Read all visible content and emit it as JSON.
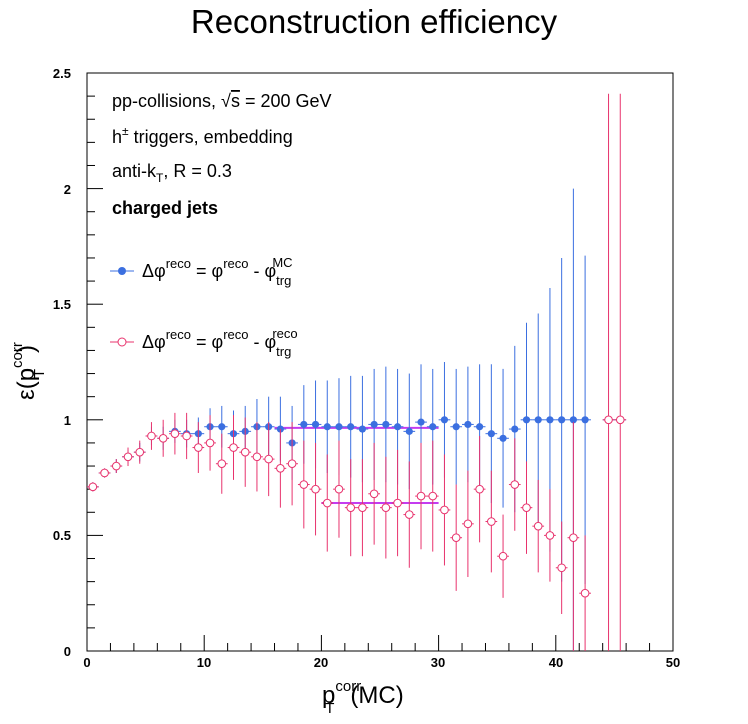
{
  "chart_data": {
    "type": "scatter",
    "title": "Reconstruction efficiency",
    "xlabel": {
      "main": "p",
      "sub": "T",
      "sup": "corr",
      "suffix": "(MC)"
    },
    "ylabel": {
      "main": "ε(p",
      "sub": "T",
      "sup": "corr",
      "suffix": ")"
    },
    "xlim": [
      0,
      50
    ],
    "ylim": [
      0,
      2.5
    ],
    "x_ticks": [
      "0",
      "10",
      "20",
      "30",
      "40",
      "50"
    ],
    "y_ticks": [
      "0",
      "0.5",
      "1",
      "1.5",
      "2",
      "2.5"
    ],
    "annotations": {
      "collision_pre": "pp-collisions, ",
      "collision_sqrt": "√",
      "collision_s": "s",
      "collision_post": " = 200 GeV",
      "trigger_h": "h",
      "trigger_sup": "±",
      "trigger_post": " triggers, embedding",
      "algo_pre": "anti-k",
      "algo_sub": "T",
      "algo_post": ", R = 0.3",
      "jets": "charged jets"
    },
    "legend_placement": "upper-left",
    "series": [
      {
        "legend": {
          "main": "Δφ",
          "sup1": "reco",
          "mid": " = φ",
          "sup2": "reco",
          "minus": " - φ",
          "sub3": "trg",
          "sup3": "MC"
        },
        "color": "#3b6fe0",
        "marker": "filled-circle",
        "x": [
          0.5,
          1.5,
          2.5,
          3.5,
          4.5,
          5.5,
          6.5,
          7.5,
          8.5,
          9.5,
          10.5,
          11.5,
          12.5,
          13.5,
          14.5,
          15.5,
          16.5,
          17.5,
          18.5,
          19.5,
          20.5,
          21.5,
          22.5,
          23.5,
          24.5,
          25.5,
          26.5,
          27.5,
          28.5,
          29.5,
          30.5,
          31.5,
          32.5,
          33.5,
          34.5,
          35.5,
          36.5,
          37.5,
          38.5,
          39.5,
          40.5,
          41.5,
          42.5,
          44.5,
          45.5
        ],
        "y": [
          0.71,
          0.77,
          0.8,
          0.84,
          0.86,
          0.93,
          0.92,
          0.95,
          0.94,
          0.94,
          0.97,
          0.97,
          0.94,
          0.95,
          0.97,
          0.97,
          0.96,
          0.9,
          0.98,
          0.98,
          0.97,
          0.97,
          0.97,
          0.96,
          0.98,
          0.98,
          0.97,
          0.95,
          0.99,
          0.97,
          1.0,
          0.97,
          0.98,
          0.97,
          0.94,
          0.92,
          0.96,
          1.0,
          1.0,
          1.0,
          1.0,
          1.0,
          1.0,
          1.0,
          1.0
        ],
        "err": [
          0.02,
          0.02,
          0.03,
          0.03,
          0.04,
          0.04,
          0.05,
          0.05,
          0.06,
          0.07,
          0.08,
          0.09,
          0.1,
          0.11,
          0.12,
          0.13,
          0.14,
          0.16,
          0.17,
          0.19,
          0.2,
          0.21,
          0.22,
          0.23,
          0.24,
          0.25,
          0.25,
          0.25,
          0.25,
          0.25,
          0.25,
          0.25,
          0.25,
          0.27,
          0.3,
          0.3,
          0.36,
          0.42,
          0.46,
          0.57,
          0.7,
          1.0,
          0.71,
          0.0,
          0.0
        ]
      },
      {
        "legend": {
          "main": "Δφ",
          "sup1": "reco",
          "mid": " = φ",
          "sup2": "reco",
          "minus": " - φ",
          "sub3": "trg",
          "sup3": "reco"
        },
        "color": "#e8336d",
        "marker": "open-circle",
        "x": [
          0.5,
          1.5,
          2.5,
          3.5,
          4.5,
          5.5,
          6.5,
          7.5,
          8.5,
          9.5,
          10.5,
          11.5,
          12.5,
          13.5,
          14.5,
          15.5,
          16.5,
          17.5,
          18.5,
          19.5,
          20.5,
          21.5,
          22.5,
          23.5,
          24.5,
          25.5,
          26.5,
          27.5,
          28.5,
          29.5,
          30.5,
          31.5,
          32.5,
          33.5,
          34.5,
          35.5,
          36.5,
          37.5,
          38.5,
          39.5,
          40.5,
          41.5,
          42.5,
          44.5,
          45.5
        ],
        "y": [
          0.71,
          0.77,
          0.8,
          0.84,
          0.86,
          0.93,
          0.92,
          0.94,
          0.93,
          0.88,
          0.9,
          0.81,
          0.88,
          0.86,
          0.84,
          0.83,
          0.79,
          0.81,
          0.72,
          0.7,
          0.64,
          0.7,
          0.62,
          0.62,
          0.68,
          0.62,
          0.64,
          0.59,
          0.67,
          0.67,
          0.61,
          0.49,
          0.55,
          0.7,
          0.56,
          0.41,
          0.72,
          0.62,
          0.54,
          0.5,
          0.36,
          0.49,
          0.25,
          1.0,
          1.0
        ],
        "err": [
          0.02,
          0.02,
          0.03,
          0.04,
          0.05,
          0.06,
          0.08,
          0.09,
          0.1,
          0.11,
          0.12,
          0.13,
          0.14,
          0.15,
          0.15,
          0.16,
          0.17,
          0.18,
          0.19,
          0.2,
          0.21,
          0.21,
          0.21,
          0.21,
          0.22,
          0.22,
          0.23,
          0.23,
          0.23,
          0.24,
          0.24,
          0.23,
          0.23,
          0.23,
          0.22,
          0.18,
          0.2,
          0.2,
          0.2,
          0.2,
          0.2,
          0.5,
          0.25,
          1.41,
          1.41
        ]
      }
    ],
    "fit_lines": [
      {
        "x_range": [
          16,
          30
        ],
        "y": 0.965,
        "color": "#c43cf0"
      },
      {
        "x_range": [
          20,
          30
        ],
        "y": 0.64,
        "color": "#c43cf0"
      }
    ]
  }
}
